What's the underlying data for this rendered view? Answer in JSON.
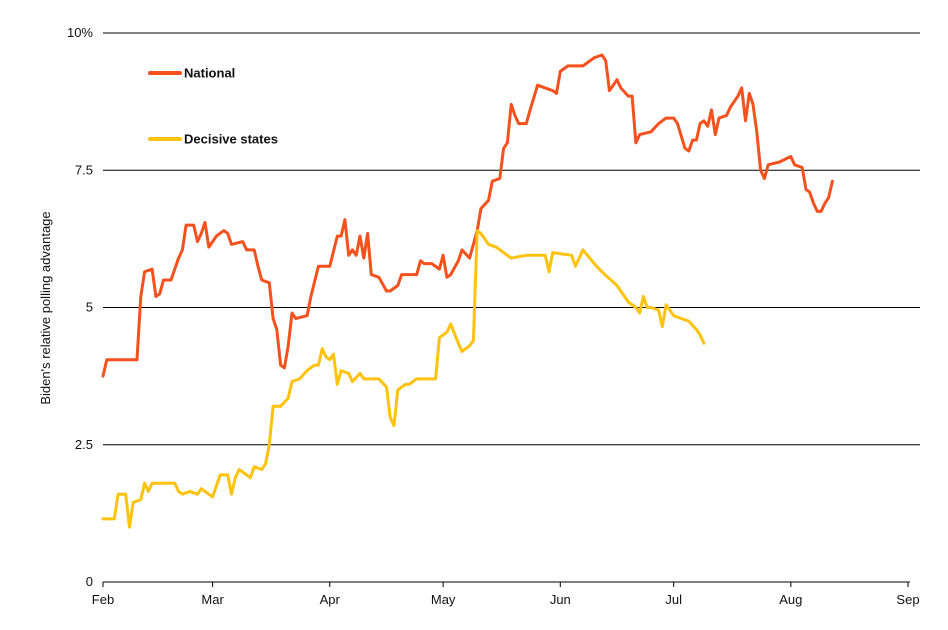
{
  "chart_data": {
    "type": "line",
    "ylabel": "Biden's relative polling advantage",
    "ylim": [
      0,
      10
    ],
    "yticks": [
      {
        "value": 0,
        "label": "0"
      },
      {
        "value": 2.5,
        "label": "2.5"
      },
      {
        "value": 5,
        "label": "5"
      },
      {
        "value": 7.5,
        "label": "7.5"
      },
      {
        "value": 10,
        "label": "10%"
      }
    ],
    "xticks": [
      {
        "date": "2020-02-01",
        "label": "Feb"
      },
      {
        "date": "2020-03-01",
        "label": "Mar"
      },
      {
        "date": "2020-04-01",
        "label": "Apr"
      },
      {
        "date": "2020-05-01",
        "label": "May"
      },
      {
        "date": "2020-06-01",
        "label": "Jun"
      },
      {
        "date": "2020-07-01",
        "label": "Jul"
      },
      {
        "date": "2020-08-01",
        "label": "Aug"
      },
      {
        "date": "2020-09-01",
        "label": "Sep"
      }
    ],
    "grid": "horizontal",
    "legend": "top-left",
    "series": [
      {
        "name": "National",
        "color": "#f4511e",
        "points": [
          [
            "2020-02-01",
            3.75
          ],
          [
            "2020-02-02",
            4.05
          ],
          [
            "2020-02-10",
            4.05
          ],
          [
            "2020-02-11",
            5.2
          ],
          [
            "2020-02-12",
            5.65
          ],
          [
            "2020-02-14",
            5.7
          ],
          [
            "2020-02-15",
            5.2
          ],
          [
            "2020-02-16",
            5.25
          ],
          [
            "2020-02-17",
            5.5
          ],
          [
            "2020-02-19",
            5.5
          ],
          [
            "2020-02-21",
            5.9
          ],
          [
            "2020-02-22",
            6.05
          ],
          [
            "2020-02-23",
            6.5
          ],
          [
            "2020-02-25",
            6.5
          ],
          [
            "2020-02-26",
            6.2
          ],
          [
            "2020-02-27",
            6.35
          ],
          [
            "2020-02-28",
            6.55
          ],
          [
            "2020-02-29",
            6.1
          ],
          [
            "2020-03-02",
            6.3
          ],
          [
            "2020-03-04",
            6.4
          ],
          [
            "2020-03-05",
            6.35
          ],
          [
            "2020-03-06",
            6.15
          ],
          [
            "2020-03-09",
            6.2
          ],
          [
            "2020-03-10",
            6.05
          ],
          [
            "2020-03-12",
            6.05
          ],
          [
            "2020-03-13",
            5.75
          ],
          [
            "2020-03-14",
            5.5
          ],
          [
            "2020-03-16",
            5.45
          ],
          [
            "2020-03-17",
            4.8
          ],
          [
            "2020-03-18",
            4.6
          ],
          [
            "2020-03-19",
            3.95
          ],
          [
            "2020-03-20",
            3.9
          ],
          [
            "2020-03-21",
            4.3
          ],
          [
            "2020-03-22",
            4.9
          ],
          [
            "2020-03-23",
            4.8
          ],
          [
            "2020-03-26",
            4.85
          ],
          [
            "2020-03-27",
            5.2
          ],
          [
            "2020-03-29",
            5.75
          ],
          [
            "2020-04-01",
            5.75
          ],
          [
            "2020-04-03",
            6.3
          ],
          [
            "2020-04-04",
            6.3
          ],
          [
            "2020-04-05",
            6.6
          ],
          [
            "2020-04-06",
            5.95
          ],
          [
            "2020-04-07",
            6.05
          ],
          [
            "2020-04-08",
            5.95
          ],
          [
            "2020-04-09",
            6.3
          ],
          [
            "2020-04-10",
            5.9
          ],
          [
            "2020-04-11",
            6.35
          ],
          [
            "2020-04-12",
            5.6
          ],
          [
            "2020-04-14",
            5.55
          ],
          [
            "2020-04-16",
            5.3
          ],
          [
            "2020-04-17",
            5.3
          ],
          [
            "2020-04-19",
            5.4
          ],
          [
            "2020-04-20",
            5.6
          ],
          [
            "2020-04-24",
            5.6
          ],
          [
            "2020-04-25",
            5.85
          ],
          [
            "2020-04-26",
            5.8
          ],
          [
            "2020-04-28",
            5.8
          ],
          [
            "2020-04-30",
            5.7
          ],
          [
            "2020-05-01",
            5.95
          ],
          [
            "2020-05-02",
            5.55
          ],
          [
            "2020-05-03",
            5.6
          ],
          [
            "2020-05-05",
            5.85
          ],
          [
            "2020-05-06",
            6.05
          ],
          [
            "2020-05-08",
            5.9
          ],
          [
            "2020-05-10",
            6.4
          ],
          [
            "2020-05-11",
            6.8
          ],
          [
            "2020-05-13",
            6.95
          ],
          [
            "2020-05-14",
            7.3
          ],
          [
            "2020-05-16",
            7.35
          ],
          [
            "2020-05-17",
            7.9
          ],
          [
            "2020-05-18",
            8.0
          ],
          [
            "2020-05-19",
            8.7
          ],
          [
            "2020-05-20",
            8.5
          ],
          [
            "2020-05-21",
            8.35
          ],
          [
            "2020-05-23",
            8.35
          ],
          [
            "2020-05-24",
            8.6
          ],
          [
            "2020-05-26",
            9.05
          ],
          [
            "2020-05-28",
            9.0
          ],
          [
            "2020-05-30",
            8.95
          ],
          [
            "2020-05-31",
            8.9
          ],
          [
            "2020-06-01",
            9.3
          ],
          [
            "2020-06-03",
            9.4
          ],
          [
            "2020-06-07",
            9.4
          ],
          [
            "2020-06-10",
            9.55
          ],
          [
            "2020-06-12",
            9.6
          ],
          [
            "2020-06-13",
            9.5
          ],
          [
            "2020-06-14",
            8.95
          ],
          [
            "2020-06-15",
            9.05
          ],
          [
            "2020-06-16",
            9.15
          ],
          [
            "2020-06-17",
            9.0
          ],
          [
            "2020-06-19",
            8.85
          ],
          [
            "2020-06-20",
            8.85
          ],
          [
            "2020-06-21",
            8.0
          ],
          [
            "2020-06-22",
            8.15
          ],
          [
            "2020-06-25",
            8.2
          ],
          [
            "2020-06-27",
            8.35
          ],
          [
            "2020-06-29",
            8.45
          ],
          [
            "2020-07-01",
            8.45
          ],
          [
            "2020-07-02",
            8.35
          ],
          [
            "2020-07-04",
            7.9
          ],
          [
            "2020-07-05",
            7.85
          ],
          [
            "2020-07-06",
            8.05
          ],
          [
            "2020-07-07",
            8.05
          ],
          [
            "2020-07-08",
            8.35
          ],
          [
            "2020-07-09",
            8.4
          ],
          [
            "2020-07-10",
            8.3
          ],
          [
            "2020-07-11",
            8.6
          ],
          [
            "2020-07-12",
            8.15
          ],
          [
            "2020-07-13",
            8.45
          ],
          [
            "2020-07-15",
            8.5
          ],
          [
            "2020-07-16",
            8.65
          ],
          [
            "2020-07-18",
            8.85
          ],
          [
            "2020-07-19",
            9.0
          ],
          [
            "2020-07-20",
            8.4
          ],
          [
            "2020-07-21",
            8.9
          ],
          [
            "2020-07-22",
            8.7
          ],
          [
            "2020-07-23",
            8.2
          ],
          [
            "2020-07-24",
            7.5
          ],
          [
            "2020-07-25",
            7.35
          ],
          [
            "2020-07-26",
            7.6
          ],
          [
            "2020-07-29",
            7.65
          ],
          [
            "2020-08-01",
            7.75
          ],
          [
            "2020-08-02",
            7.6
          ],
          [
            "2020-08-04",
            7.55
          ],
          [
            "2020-08-05",
            7.15
          ],
          [
            "2020-08-06",
            7.1
          ],
          [
            "2020-08-07",
            6.9
          ],
          [
            "2020-08-08",
            6.75
          ],
          [
            "2020-08-09",
            6.75
          ],
          [
            "2020-08-10",
            6.9
          ],
          [
            "2020-08-11",
            7.0
          ],
          [
            "2020-08-12",
            7.3
          ]
        ]
      },
      {
        "name": "Decisive states",
        "color": "#ffc20e",
        "points": [
          [
            "2020-02-01",
            1.15
          ],
          [
            "2020-02-04",
            1.15
          ],
          [
            "2020-02-05",
            1.6
          ],
          [
            "2020-02-07",
            1.6
          ],
          [
            "2020-02-08",
            1.0
          ],
          [
            "2020-02-09",
            1.45
          ],
          [
            "2020-02-11",
            1.5
          ],
          [
            "2020-02-12",
            1.8
          ],
          [
            "2020-02-13",
            1.65
          ],
          [
            "2020-02-14",
            1.8
          ],
          [
            "2020-02-17",
            1.8
          ],
          [
            "2020-02-20",
            1.8
          ],
          [
            "2020-02-21",
            1.65
          ],
          [
            "2020-02-22",
            1.6
          ],
          [
            "2020-02-24",
            1.65
          ],
          [
            "2020-02-26",
            1.6
          ],
          [
            "2020-02-27",
            1.7
          ],
          [
            "2020-02-29",
            1.6
          ],
          [
            "2020-03-01",
            1.55
          ],
          [
            "2020-03-03",
            1.95
          ],
          [
            "2020-03-05",
            1.95
          ],
          [
            "2020-03-06",
            1.6
          ],
          [
            "2020-03-07",
            1.9
          ],
          [
            "2020-03-08",
            2.05
          ],
          [
            "2020-03-10",
            1.95
          ],
          [
            "2020-03-11",
            1.9
          ],
          [
            "2020-03-12",
            2.1
          ],
          [
            "2020-03-14",
            2.05
          ],
          [
            "2020-03-15",
            2.15
          ],
          [
            "2020-03-16",
            2.5
          ],
          [
            "2020-03-17",
            3.2
          ],
          [
            "2020-03-19",
            3.2
          ],
          [
            "2020-03-21",
            3.35
          ],
          [
            "2020-03-22",
            3.65
          ],
          [
            "2020-03-24",
            3.7
          ],
          [
            "2020-03-26",
            3.85
          ],
          [
            "2020-03-28",
            3.95
          ],
          [
            "2020-03-29",
            3.95
          ],
          [
            "2020-03-30",
            4.25
          ],
          [
            "2020-03-31",
            4.1
          ],
          [
            "2020-04-01",
            4.05
          ],
          [
            "2020-04-02",
            4.15
          ],
          [
            "2020-04-03",
            3.6
          ],
          [
            "2020-04-04",
            3.85
          ],
          [
            "2020-04-06",
            3.8
          ],
          [
            "2020-04-07",
            3.65
          ],
          [
            "2020-04-09",
            3.8
          ],
          [
            "2020-04-10",
            3.7
          ],
          [
            "2020-04-14",
            3.7
          ],
          [
            "2020-04-16",
            3.55
          ],
          [
            "2020-04-17",
            3.0
          ],
          [
            "2020-04-18",
            2.85
          ],
          [
            "2020-04-19",
            3.5
          ],
          [
            "2020-04-21",
            3.6
          ],
          [
            "2020-04-22",
            3.6
          ],
          [
            "2020-04-24",
            3.7
          ],
          [
            "2020-04-29",
            3.7
          ],
          [
            "2020-04-30",
            4.45
          ],
          [
            "2020-05-02",
            4.55
          ],
          [
            "2020-05-03",
            4.7
          ],
          [
            "2020-05-05",
            4.35
          ],
          [
            "2020-05-06",
            4.2
          ],
          [
            "2020-05-08",
            4.3
          ],
          [
            "2020-05-09",
            4.4
          ],
          [
            "2020-05-10",
            6.4
          ],
          [
            "2020-05-11",
            6.35
          ],
          [
            "2020-05-13",
            6.15
          ],
          [
            "2020-05-15",
            6.1
          ],
          [
            "2020-05-17",
            6.0
          ],
          [
            "2020-05-19",
            5.9
          ],
          [
            "2020-05-23",
            5.95
          ],
          [
            "2020-05-28",
            5.95
          ],
          [
            "2020-05-29",
            5.65
          ],
          [
            "2020-05-30",
            6.0
          ],
          [
            "2020-06-04",
            5.95
          ],
          [
            "2020-06-05",
            5.75
          ],
          [
            "2020-06-07",
            6.05
          ],
          [
            "2020-06-10",
            5.8
          ],
          [
            "2020-06-12",
            5.65
          ],
          [
            "2020-06-16",
            5.4
          ],
          [
            "2020-06-17",
            5.3
          ],
          [
            "2020-06-19",
            5.1
          ],
          [
            "2020-06-21",
            5.0
          ],
          [
            "2020-06-22",
            4.9
          ],
          [
            "2020-06-23",
            5.2
          ],
          [
            "2020-06-24",
            5.0
          ],
          [
            "2020-06-25",
            5.0
          ],
          [
            "2020-06-27",
            4.95
          ],
          [
            "2020-06-28",
            4.65
          ],
          [
            "2020-06-29",
            5.05
          ],
          [
            "2020-07-01",
            4.85
          ],
          [
            "2020-07-03",
            4.8
          ],
          [
            "2020-07-05",
            4.75
          ],
          [
            "2020-07-07",
            4.6
          ],
          [
            "2020-07-08",
            4.5
          ],
          [
            "2020-07-09",
            4.35
          ]
        ]
      }
    ]
  }
}
